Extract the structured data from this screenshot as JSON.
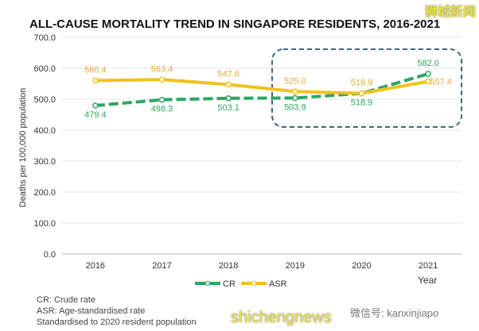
{
  "chart_data": {
    "type": "line",
    "title": "ALL-CAUSE MORTALITY TREND IN SINGAPORE RESIDENTS, 2016-2021",
    "xlabel": "Year",
    "ylabel": "Deaths per 100,000 population",
    "ylim": [
      0,
      700
    ],
    "yticks": [
      "0.0",
      "100.0",
      "200.0",
      "300.0",
      "400.0",
      "500.0",
      "600.0",
      "700.0"
    ],
    "categories": [
      "2016",
      "2017",
      "2018",
      "2019",
      "2020",
      "2021"
    ],
    "grid": true,
    "legend_placement": "bottom",
    "series": [
      {
        "name": "CR",
        "values": [
          479.4,
          498.3,
          503.1,
          503.9,
          518.9,
          582.0
        ],
        "labels": [
          "479.4",
          "498.3",
          "503.1",
          "503.9",
          "518.9",
          "582.0"
        ],
        "color": "#2aa860",
        "style": "dashed"
      },
      {
        "name": "ASR",
        "values": [
          560.4,
          563.4,
          547.6,
          525.0,
          518.9,
          557.4
        ],
        "labels": [
          "560.4",
          "563.4",
          "547.6",
          "525.0",
          "518.9",
          "557.4"
        ],
        "color": "#f2c21b",
        "style": "solid"
      }
    ],
    "annotation": "dashed box highlighting 2019-2021"
  },
  "notes": [
    "CR: Crude rate",
    "ASR: Age-standardised rate",
    "Standardised to 2020 resident population"
  ],
  "watermarks": [
    "狮城新闻",
    "shichengnews",
    "微信号: kanxinjiapo"
  ]
}
